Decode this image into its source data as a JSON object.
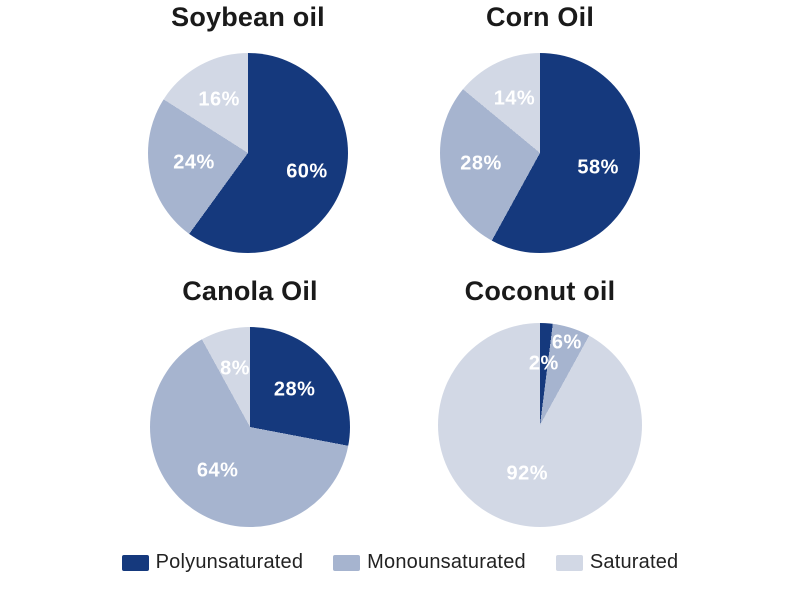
{
  "colors": {
    "polyunsaturated": "#15397D",
    "monounsaturated": "#A6B4CF",
    "saturated": "#D2D8E5"
  },
  "text": {
    "title_color": "#1A1A1A",
    "slice_label_color": "#FFFFFF",
    "legend_text_color": "#222222"
  },
  "legend": {
    "position": "bottom",
    "items": [
      {
        "label": "Polyunsaturated",
        "color_key": "polyunsaturated"
      },
      {
        "label": "Monounsaturated",
        "color_key": "monounsaturated"
      },
      {
        "label": "Saturated",
        "color_key": "saturated"
      }
    ]
  },
  "chart_data": [
    {
      "type": "pie",
      "title": "Soybean oil",
      "categories": [
        "Polyunsaturated",
        "Monounsaturated",
        "Saturated"
      ],
      "values": [
        60,
        24,
        16
      ],
      "labels": [
        "60%",
        "24%",
        "16%"
      ],
      "start_angle_deg": 0,
      "direction": "clockwise",
      "label_r": [
        0.62,
        0.55,
        0.6
      ]
    },
    {
      "type": "pie",
      "title": "Corn Oil",
      "categories": [
        "Polyunsaturated",
        "Monounsaturated",
        "Saturated"
      ],
      "values": [
        58,
        28,
        14
      ],
      "labels": [
        "58%",
        "28%",
        "14%"
      ],
      "start_angle_deg": 0,
      "direction": "clockwise",
      "label_r": [
        0.6,
        0.6,
        0.6
      ]
    },
    {
      "type": "pie",
      "title": "Canola Oil",
      "categories": [
        "Polyunsaturated",
        "Monounsaturated",
        "Saturated"
      ],
      "values": [
        28,
        64,
        8
      ],
      "labels": [
        "28%",
        "64%",
        "8%"
      ],
      "start_angle_deg": 0,
      "direction": "clockwise",
      "label_r": [
        0.58,
        0.55,
        0.6
      ]
    },
    {
      "type": "pie",
      "title": "Coconut oil",
      "categories": [
        "Polyunsaturated",
        "Monounsaturated",
        "Saturated"
      ],
      "values": [
        2,
        6,
        92
      ],
      "labels": [
        "2%",
        "6%",
        "92%"
      ],
      "start_angle_deg": 0,
      "direction": "clockwise",
      "label_r": [
        0.6,
        0.85,
        0.5
      ]
    }
  ]
}
